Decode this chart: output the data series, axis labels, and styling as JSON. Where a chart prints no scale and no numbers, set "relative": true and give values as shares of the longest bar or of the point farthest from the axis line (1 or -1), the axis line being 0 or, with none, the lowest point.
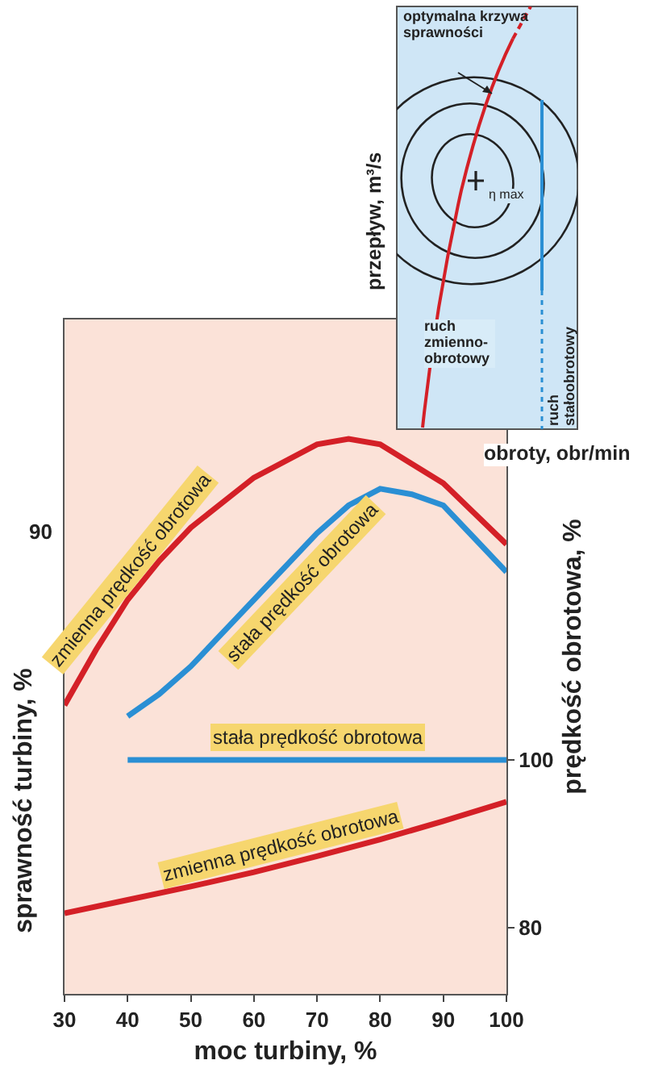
{
  "chart_data": [
    {
      "type": "line",
      "ylabel": "sprawność turbiny, %",
      "relative": true,
      "annotations": [
        "90"
      ],
      "xlim": [
        30,
        100
      ],
      "series": [
        {
          "name": "zmienna prędkość obrotowa",
          "color": "#d42027",
          "x": [
            30,
            35,
            40,
            45,
            50,
            60,
            70,
            75,
            80,
            90,
            100
          ],
          "values": [
            0.52,
            0.62,
            0.71,
            0.78,
            0.84,
            0.93,
            0.99,
            1,
            0.99,
            0.92,
            0.81
          ]
        },
        {
          "name": "stała prędkość obrotowa",
          "color": "#2a8fd4",
          "x": [
            40,
            45,
            50,
            60,
            70,
            75,
            80,
            85,
            90,
            95,
            100
          ],
          "values": [
            0.5,
            0.54,
            0.59,
            0.71,
            0.83,
            0.88,
            0.91,
            0.9,
            0.88,
            0.82,
            0.76
          ]
        }
      ]
    },
    {
      "type": "line",
      "xlabel": "moc turbiny, %",
      "y2label": "prędkość obrotowa, %",
      "xlim": [
        30,
        100
      ],
      "xticks": [
        30,
        40,
        50,
        60,
        70,
        80,
        90,
        100
      ],
      "y2lim": [
        72.1,
        152.5
      ],
      "y2ticks": [
        80,
        100
      ],
      "series": [
        {
          "name": "stała prędkość obrotowa",
          "color": "#2a8fd4",
          "axis": "y2",
          "x": [
            40,
            100
          ],
          "values": [
            100,
            100
          ]
        },
        {
          "name": "zmienna prędkość obrotowa",
          "color": "#d42027",
          "axis": "y2",
          "x": [
            30,
            40,
            50,
            60,
            70,
            80,
            90,
            100
          ],
          "values": [
            81.7,
            83.3,
            84.9,
            86.6,
            88.5,
            90.5,
            92.7,
            95.0
          ]
        }
      ]
    },
    {
      "type": "other",
      "xlabel": "obroty, obr/min",
      "ylabel": "przepływ, m³/s",
      "annotations": [
        "optymalna krzywa sprawności",
        "η max",
        "ruch zmienno-obrotowy",
        "ruch stałoobrotowy"
      ]
    }
  ]
}
